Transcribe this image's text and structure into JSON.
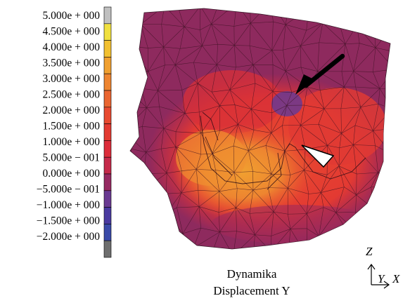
{
  "legend": {
    "labels": [
      "5.000e + 000",
      "4.500e + 000",
      "4.000e + 000",
      "3.500e + 000",
      "3.000e + 000",
      "2.500e + 000",
      "2.000e + 000",
      "1.500e + 000",
      "1.000e + 000",
      "5.000e − 001",
      "0.000e + 000",
      "−5.000e − 001",
      "−1.000e + 000",
      "−1.500e + 000",
      "−2.000e + 000"
    ],
    "colors": [
      "#c0c0c0",
      "#f0e040",
      "#f2c030",
      "#f0a030",
      "#ee8530",
      "#ea6530",
      "#e84a30",
      "#e33a32",
      "#dc2c3a",
      "#c52a4a",
      "#962a62",
      "#6a3a92",
      "#4a3aa0",
      "#3a4aa8",
      "#6e6e6e"
    ]
  },
  "caption": {
    "line1": "Dynamika",
    "line2": "Displacement Y"
  },
  "axes": {
    "z": "Z",
    "y": "Y",
    "x": "X"
  },
  "annotations": {
    "black_arrow": "arrow-black",
    "white_arrowhead": "arrowhead-white"
  }
}
